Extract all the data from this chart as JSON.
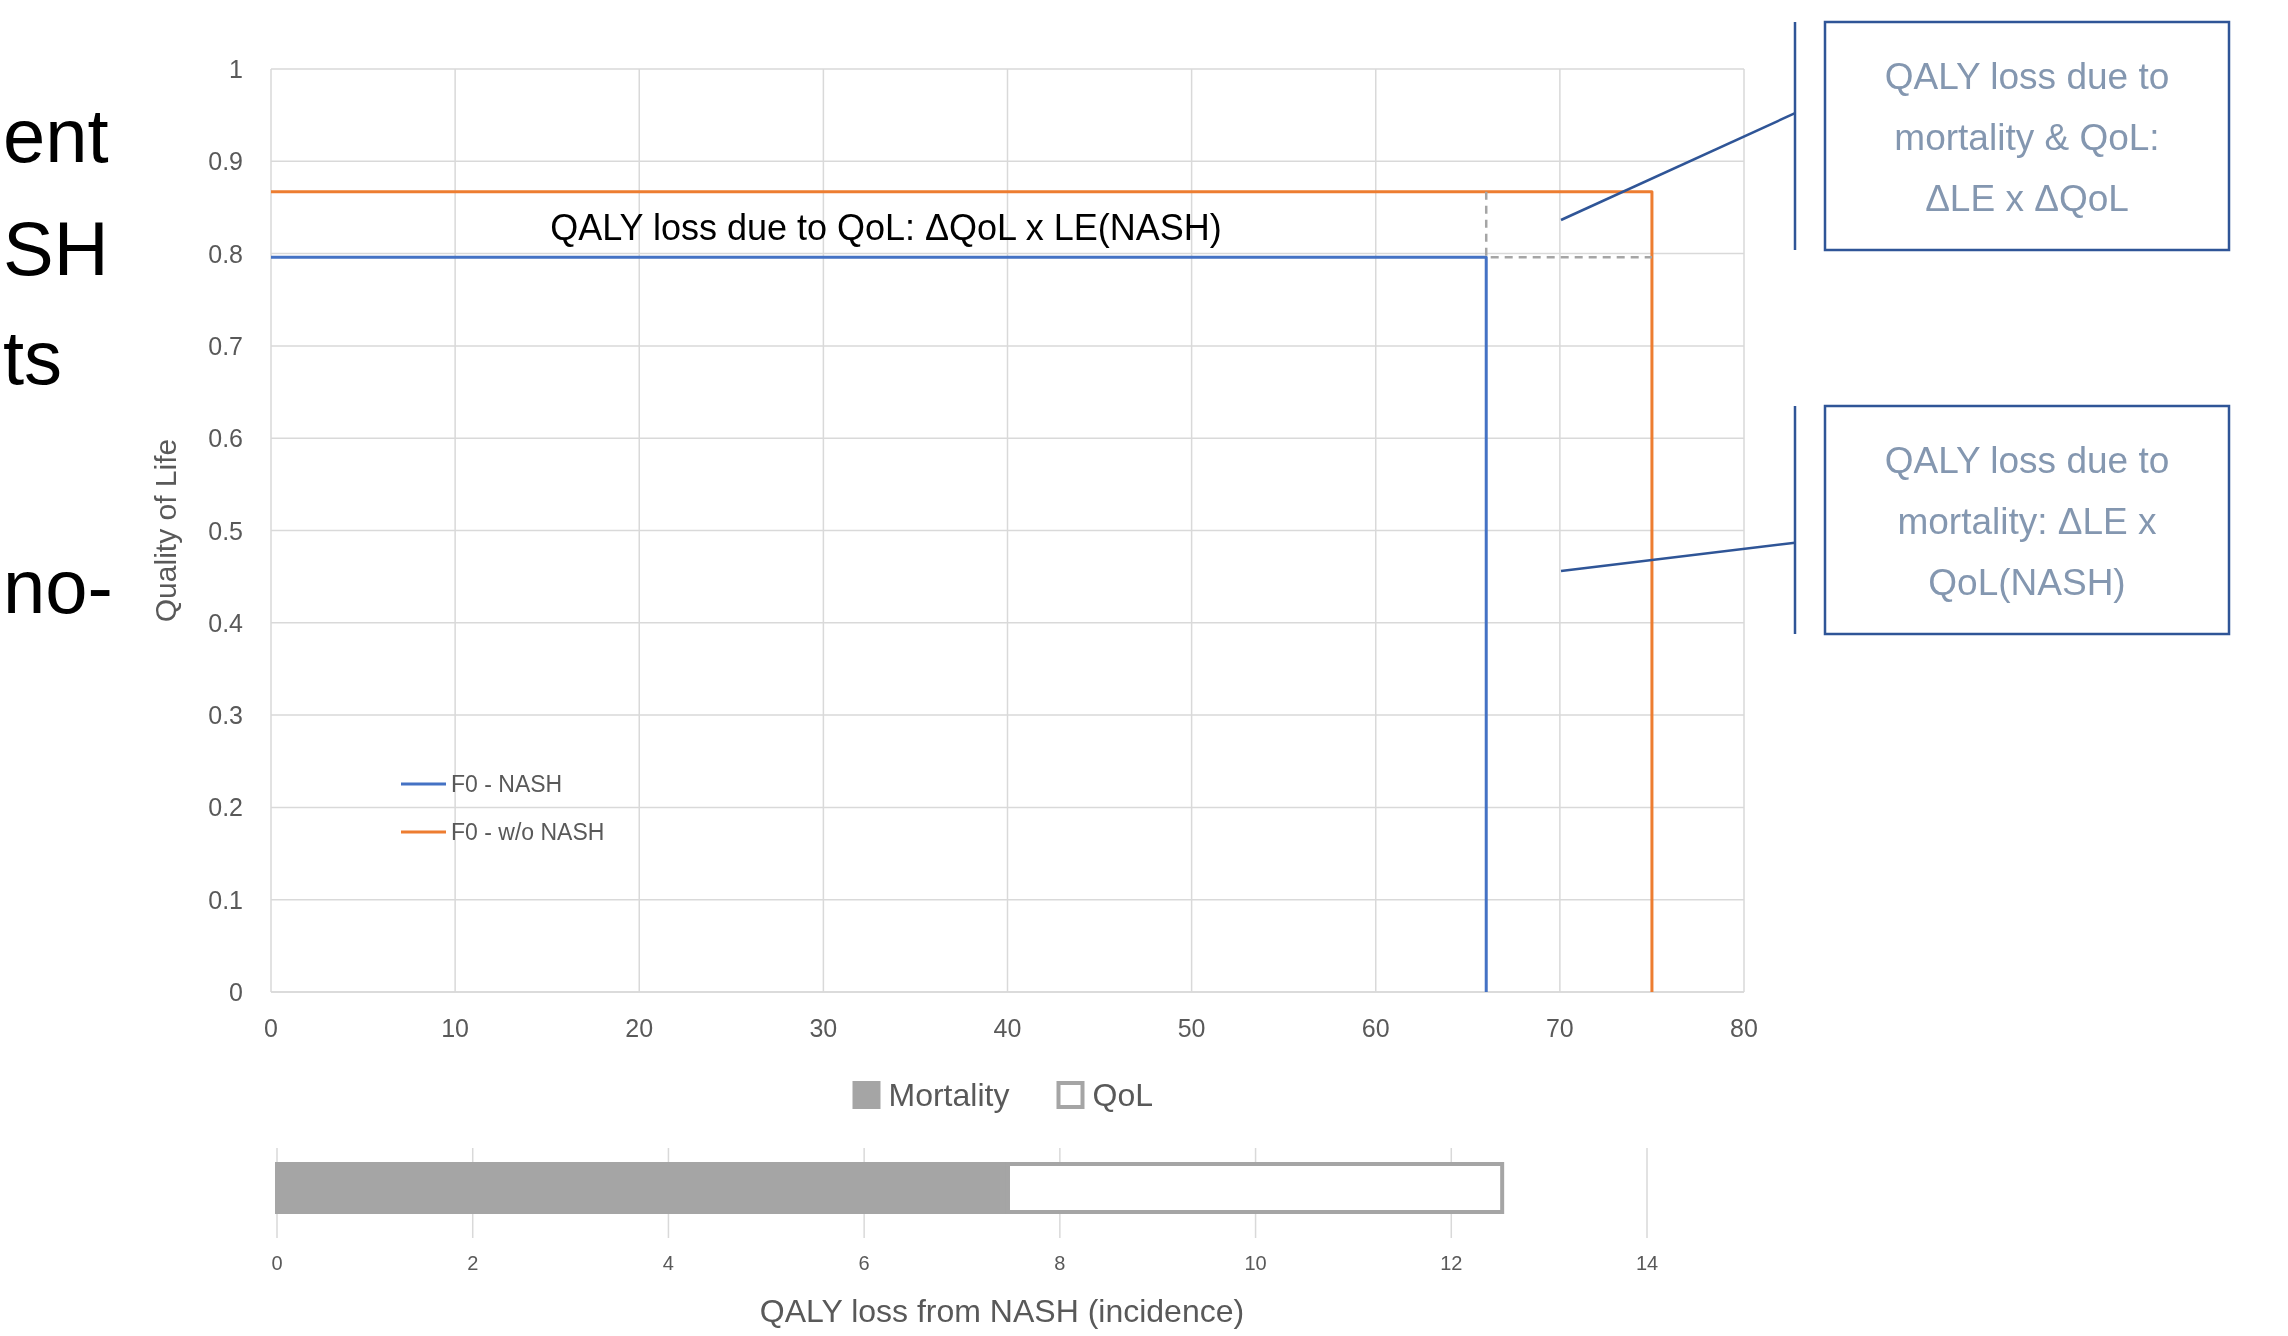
{
  "chart_data": [
    {
      "type": "line",
      "ylabel": "Quality of Life",
      "xlim": [
        0,
        80
      ],
      "xticks": [
        0,
        10,
        20,
        30,
        40,
        50,
        60,
        70,
        80
      ],
      "ylim": [
        0,
        1
      ],
      "yticks": [
        0,
        0.1,
        0.2,
        0.3,
        0.4,
        0.5,
        0.6,
        0.7,
        0.8,
        0.9,
        1
      ],
      "grid": true,
      "legend": "bottom left",
      "marker": "none",
      "series": [
        {
          "name": "F0 - NASH",
          "color": "#4472c4",
          "x": [
            0,
            66,
            66
          ],
          "values": [
            0.796,
            0.796,
            0
          ]
        },
        {
          "name": "F0 - w/o NASH",
          "color": "#ed7d31",
          "x": [
            0,
            75,
            75
          ],
          "values": [
            0.867,
            0.867,
            0
          ]
        },
        {
          "color": "#a5a5a5",
          "x": [
            66,
            66,
            75
          ],
          "values": [
            0.867,
            0.796,
            0.796
          ],
          "line_style": "dashed"
        }
      ],
      "annotations": [
        "QALY loss due to QoL: ΔQoL x LE(NASH)",
        "QALY loss due to mortality & QoL: ΔLE x ΔQoL",
        "QALY loss due to mortality: ΔLE x QoL(NASH)",
        "ent",
        "SH",
        "ts",
        "no-"
      ]
    },
    {
      "type": "bar",
      "orientation": "horizontal",
      "stacked": true,
      "categories": [
        null
      ],
      "xlabel": "QALY loss from NASH (incidence)",
      "xlim": [
        0,
        14
      ],
      "xticks": [
        0,
        2,
        4,
        6,
        8,
        10,
        12,
        14
      ],
      "grid": "x",
      "legend": "top",
      "series": [
        {
          "name": "Mortality",
          "color": "#a5a5a5",
          "values": [
            7.47
          ]
        },
        {
          "name": "QoL",
          "color": "#ffffff",
          "values": [
            5.05
          ]
        }
      ]
    }
  ]
}
